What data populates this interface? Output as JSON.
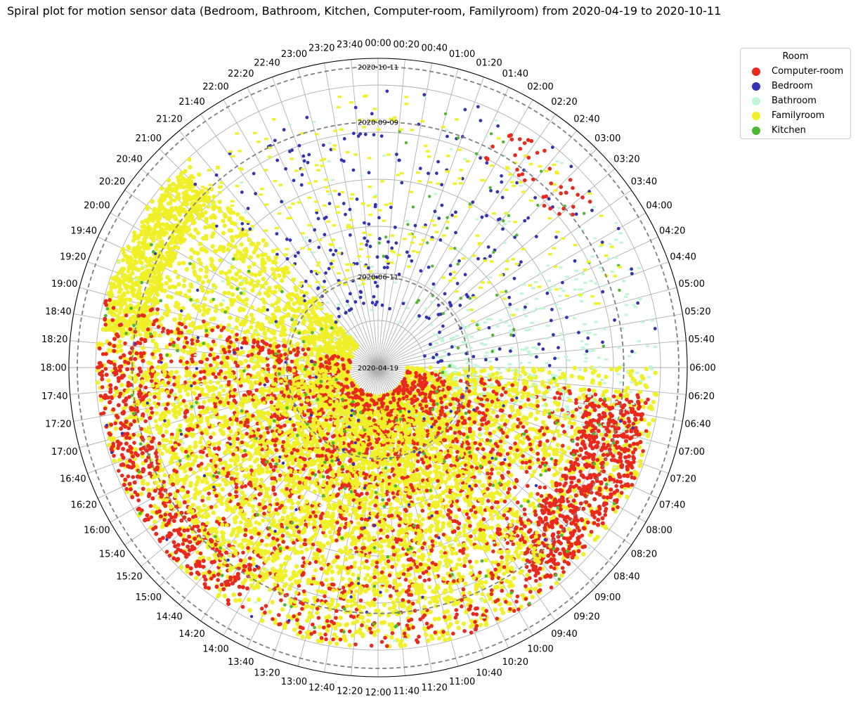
{
  "chart_data": {
    "type": "scatter",
    "projection": "polar-spiral",
    "title": "Spiral plot for motion sensor data (Bedroom, Bathroom, Kitchen, Computer-room, Familyroom) from 2020-04-19 to 2020-10-11",
    "angular_axis": {
      "quantity": "time of day",
      "direction": "clockwise",
      "zero_location": "top",
      "tick_labels": [
        "00:00",
        "00:20",
        "00:40",
        "01:00",
        "01:20",
        "01:40",
        "02:00",
        "02:20",
        "02:40",
        "03:00",
        "03:20",
        "03:40",
        "04:00",
        "04:20",
        "04:40",
        "05:00",
        "05:20",
        "05:40",
        "06:00",
        "06:20",
        "06:40",
        "07:00",
        "07:20",
        "07:40",
        "08:00",
        "08:20",
        "08:40",
        "09:00",
        "09:20",
        "09:40",
        "10:00",
        "10:20",
        "10:40",
        "11:00",
        "11:20",
        "11:40",
        "12:00",
        "12:20",
        "12:40",
        "13:00",
        "13:20",
        "13:40",
        "14:00",
        "14:20",
        "14:40",
        "15:00",
        "15:20",
        "15:40",
        "16:00",
        "16:20",
        "16:40",
        "17:00",
        "17:20",
        "17:40",
        "18:00",
        "18:20",
        "18:40",
        "19:00",
        "19:20",
        "19:40",
        "20:00",
        "20:20",
        "20:40",
        "21:00",
        "21:20",
        "21:40",
        "22:00",
        "22:20",
        "22:40",
        "23:00",
        "23:20",
        "23:40"
      ]
    },
    "radial_axis": {
      "quantity": "date",
      "range": [
        "2020-04-19",
        "2020-10-11"
      ],
      "date_rings": [
        "2020-04-19",
        "2020-06-11",
        "2020-09-09",
        "2020-10-11"
      ]
    },
    "grid": true,
    "legend": {
      "title": "Room",
      "placement": "outside-right",
      "entries": [
        {
          "name": "Computer-room",
          "color": "#e8291c"
        },
        {
          "name": "Bedroom",
          "color": "#3434b2"
        },
        {
          "name": "Bathroom",
          "color": "#bff7d6"
        },
        {
          "name": "Familyroom",
          "color": "#f0f028"
        },
        {
          "name": "Kitchen",
          "color": "#50b830"
        }
      ]
    },
    "series": [
      {
        "name": "Familyroom",
        "color": "#f0f028",
        "description": "dense activity mostly between 06:00 and 21:00 across the whole date range"
      },
      {
        "name": "Computer-room",
        "color": "#e8291c",
        "description": "frequent activity between 06:30 and 19:00"
      },
      {
        "name": "Bathroom",
        "color": "#bff7d6",
        "description": "scattered activity, more in early morning 04:00-07:00"
      },
      {
        "name": "Bedroom",
        "color": "#3434b2",
        "description": "sparse points mainly during night hours"
      },
      {
        "name": "Kitchen",
        "color": "#50b830",
        "description": "sparse points mostly within daytime clusters"
      }
    ]
  }
}
